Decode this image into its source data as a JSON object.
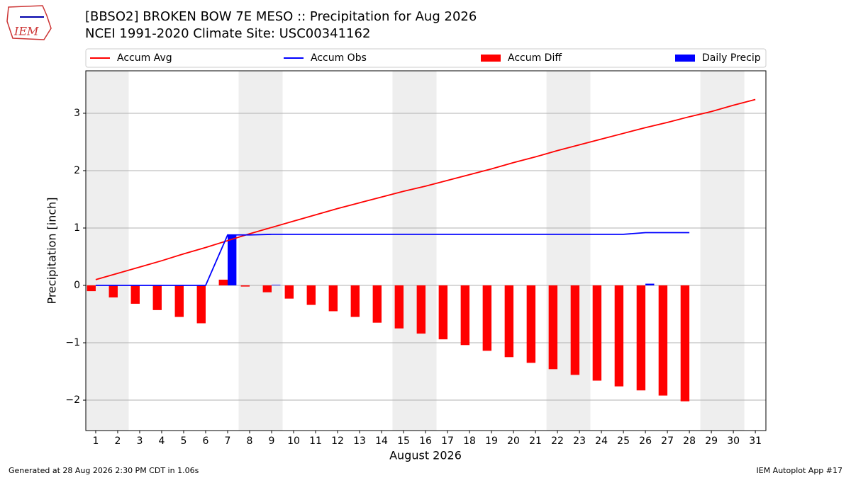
{
  "chart_data": {
    "type": "line",
    "title": "[BBSO2] BROKEN BOW 7E MESO :: Precipitation for Aug 2026",
    "subtitle": "NCEI 1991-2020 Climate Site: USC00341162",
    "x_label": "August 2026",
    "y_label": "Precipitation [inch]",
    "footer_left": "Generated at 28 Aug 2026 2:30 PM CDT in 1.06s",
    "footer_right": "IEM Autoplot App #17",
    "logo": "IEM",
    "x": [
      1,
      2,
      3,
      4,
      5,
      6,
      7,
      8,
      9,
      10,
      11,
      12,
      13,
      14,
      15,
      16,
      17,
      18,
      19,
      20,
      21,
      22,
      23,
      24,
      25,
      26,
      27,
      28,
      29,
      30,
      31
    ],
    "series": [
      {
        "name": "Accum Avg",
        "color": "#ff0000",
        "kind": "line",
        "values": [
          0.1,
          0.21,
          0.32,
          0.43,
          0.55,
          0.66,
          0.78,
          0.9,
          1.01,
          1.12,
          1.23,
          1.34,
          1.44,
          1.54,
          1.64,
          1.73,
          1.83,
          1.93,
          2.03,
          2.14,
          2.24,
          2.35,
          2.45,
          2.55,
          2.65,
          2.75,
          2.84,
          2.94,
          3.03,
          3.14,
          3.24
        ]
      },
      {
        "name": "Accum Obs",
        "color": "#0000ff",
        "kind": "line",
        "values": [
          0,
          0,
          0,
          0,
          0,
          0,
          0.88,
          0.88,
          0.89,
          0.89,
          0.89,
          0.89,
          0.89,
          0.89,
          0.89,
          0.89,
          0.89,
          0.89,
          0.89,
          0.89,
          0.89,
          0.89,
          0.89,
          0.89,
          0.89,
          0.92,
          0.92,
          0.92,
          null,
          null,
          null
        ]
      },
      {
        "name": "Accum Diff",
        "color": "#ff0000",
        "kind": "bar",
        "values": [
          -0.1,
          -0.21,
          -0.32,
          -0.43,
          -0.55,
          -0.66,
          0.1,
          -0.02,
          -0.12,
          -0.23,
          -0.34,
          -0.45,
          -0.55,
          -0.65,
          -0.75,
          -0.84,
          -0.94,
          -1.04,
          -1.14,
          -1.25,
          -1.35,
          -1.46,
          -1.56,
          -1.66,
          -1.76,
          -1.83,
          -1.92,
          -2.02,
          null,
          null,
          null
        ]
      },
      {
        "name": "Daily Precip",
        "color": "#0000ff",
        "kind": "bar",
        "values": [
          0,
          0,
          0,
          0,
          0,
          0,
          0.88,
          0,
          0.01,
          0,
          0,
          0,
          0,
          0,
          0,
          0,
          0,
          0,
          0,
          0,
          0,
          0,
          0,
          0,
          0,
          0.03,
          0,
          0,
          null,
          null,
          null
        ]
      }
    ],
    "xlim": [
      0.55,
      31.48
    ],
    "ylim": [
      -2.53,
      3.74
    ],
    "xticks": [
      1,
      2,
      3,
      4,
      5,
      6,
      7,
      8,
      9,
      10,
      11,
      12,
      13,
      14,
      15,
      16,
      17,
      18,
      19,
      20,
      21,
      22,
      23,
      24,
      25,
      26,
      27,
      28,
      29,
      30,
      31
    ],
    "yticks": [
      {
        "value": -2,
        "label": "−2"
      },
      {
        "value": -1,
        "label": "−1"
      },
      0,
      1,
      2,
      3
    ],
    "grid": true,
    "weekend_shading": [
      [
        0.5,
        2.5
      ],
      [
        7.5,
        9.5
      ],
      [
        14.5,
        16.5
      ],
      [
        21.5,
        23.5
      ],
      [
        28.5,
        30.5
      ]
    ],
    "legend": "top"
  }
}
